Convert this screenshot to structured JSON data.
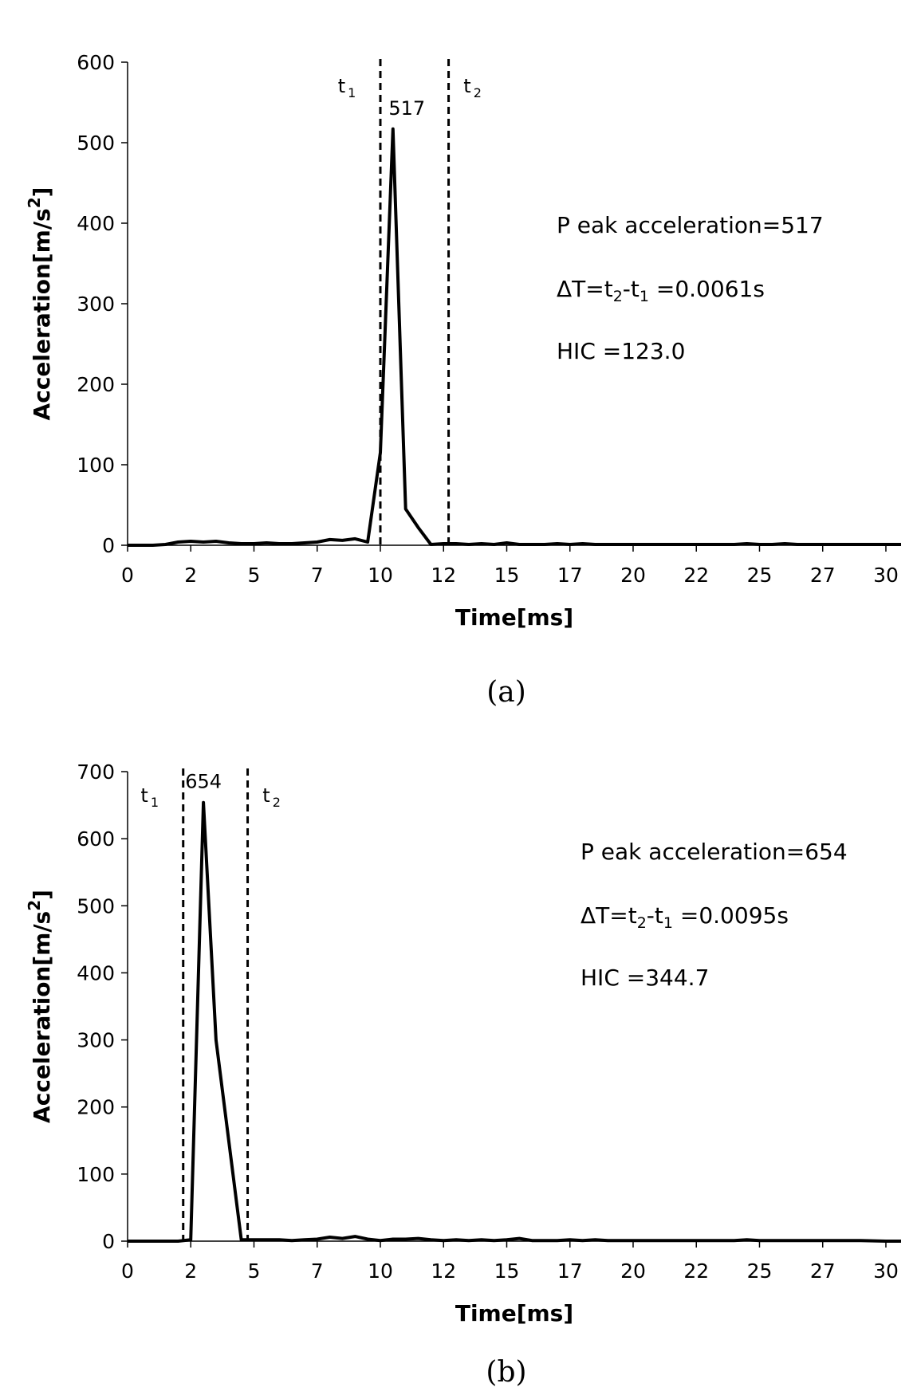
{
  "chart_data": [
    {
      "id": "a",
      "type": "line",
      "caption": "(a)",
      "xlabel": "Time[ms]",
      "ylabel": "Acceleration[m/s",
      "ylabel_sup": "2",
      "ylabel_end": "]",
      "xlim": [
        0,
        30.6
      ],
      "ylim": [
        0,
        600
      ],
      "x_ticks": [
        0,
        2.5,
        5,
        7.5,
        10,
        12.5,
        15,
        17.5,
        20,
        22.5,
        25,
        27.5,
        30
      ],
      "x_tick_labels": [
        "0",
        "2",
        "5",
        "7",
        "10",
        "12",
        "15",
        "17",
        "20",
        "22",
        "25",
        "27",
        "30"
      ],
      "y_ticks": [
        0,
        100,
        200,
        300,
        400,
        500,
        600
      ],
      "y_tick_labels": [
        "0",
        "100",
        "200",
        "300",
        "400",
        "500",
        "600"
      ],
      "grid": false,
      "series": [
        {
          "x": [
            0,
            1,
            1.5,
            2,
            2.5,
            3,
            3.5,
            4,
            4.5,
            5,
            5.5,
            6,
            6.5,
            7,
            7.5,
            8,
            8.5,
            9,
            9.5,
            10,
            10.5,
            11,
            11.5,
            12,
            12.5,
            13,
            13.5,
            14,
            14.5,
            15,
            15.5,
            16,
            16.5,
            17,
            17.5,
            18,
            18.5,
            19,
            19.5,
            20,
            21,
            22,
            23,
            24,
            24.5,
            25,
            25.5,
            26,
            26.5,
            27,
            28,
            29,
            30,
            30.6
          ],
          "y": [
            0,
            0,
            1,
            4,
            5,
            4,
            5,
            3,
            2,
            2,
            3,
            2,
            2,
            3,
            4,
            7,
            6,
            8,
            4,
            115,
            517,
            45,
            22,
            1,
            2,
            2,
            1,
            2,
            1,
            3,
            1,
            1,
            1,
            2,
            1,
            2,
            1,
            1,
            1,
            1,
            1,
            1,
            1,
            1,
            2,
            1,
            1,
            2,
            1,
            1,
            1,
            1,
            1,
            1
          ]
        }
      ],
      "markers": [
        {
          "x": 10.0,
          "label": "t",
          "sub": "1"
        },
        {
          "x": 12.7,
          "label": "t",
          "sub": "2"
        }
      ],
      "peak_label": {
        "x": 11.05,
        "y": 517,
        "text": "517"
      },
      "annotations": [
        {
          "parts": [
            {
              "t": "P eak acceleration=517"
            }
          ]
        },
        {
          "parts": [
            {
              "t": "ΔT=t"
            },
            {
              "t": "2",
              "sub": true
            },
            {
              "t": "-t"
            },
            {
              "t": "1",
              "sub": true
            },
            {
              "t": " =0.0061s"
            }
          ]
        },
        {
          "parts": [
            {
              "t": "HIC =123.0"
            }
          ]
        }
      ]
    },
    {
      "id": "b",
      "type": "line",
      "caption": "(b)",
      "xlabel": "Time[ms]",
      "ylabel": "Acceleration[m/s",
      "ylabel_sup": "2",
      "ylabel_end": "]",
      "xlim": [
        0,
        30.6
      ],
      "ylim": [
        0,
        700
      ],
      "x_ticks": [
        0,
        2.5,
        5,
        7.5,
        10,
        12.5,
        15,
        17.5,
        20,
        22.5,
        25,
        27.5,
        30
      ],
      "x_tick_labels": [
        "0",
        "2",
        "5",
        "7",
        "10",
        "12",
        "15",
        "17",
        "20",
        "22",
        "25",
        "27",
        "30"
      ],
      "y_ticks": [
        0,
        100,
        200,
        300,
        400,
        500,
        600,
        700
      ],
      "y_tick_labels": [
        "0",
        "100",
        "200",
        "300",
        "400",
        "500",
        "600",
        "700"
      ],
      "grid": false,
      "series": [
        {
          "x": [
            0,
            1,
            2,
            2.5,
            3,
            3.5,
            4.5,
            5,
            5.5,
            6,
            6.5,
            7,
            7.5,
            8,
            8.5,
            9,
            9.5,
            10,
            10.5,
            11,
            11.5,
            12,
            12.5,
            13,
            13.5,
            14,
            14.5,
            15,
            15.5,
            16,
            16.5,
            17,
            17.5,
            18,
            18.5,
            19,
            20,
            21,
            22,
            23,
            24,
            24.5,
            25,
            26,
            27,
            28,
            29,
            30,
            30.6
          ],
          "y": [
            0,
            0,
            0,
            2,
            654,
            300,
            2,
            2,
            2,
            2,
            1,
            2,
            3,
            6,
            4,
            7,
            3,
            1,
            3,
            3,
            4,
            2,
            1,
            2,
            1,
            2,
            1,
            2,
            4,
            1,
            1,
            1,
            2,
            1,
            2,
            1,
            1,
            1,
            1,
            1,
            1,
            2,
            1,
            1,
            1,
            1,
            1,
            0,
            0
          ]
        }
      ],
      "markers": [
        {
          "x": 2.2,
          "label": "t",
          "sub": "1"
        },
        {
          "x": 4.75,
          "label": "t",
          "sub": "2"
        }
      ],
      "peak_label": {
        "x": 3.0,
        "y": 654,
        "text": "654"
      },
      "annotations": [
        {
          "parts": [
            {
              "t": "P eak acceleration=654"
            }
          ]
        },
        {
          "parts": [
            {
              "t": "ΔT=t"
            },
            {
              "t": "2",
              "sub": true
            },
            {
              "t": "-t"
            },
            {
              "t": "1",
              "sub": true
            },
            {
              "t": " =0.0095s"
            }
          ]
        },
        {
          "parts": [
            {
              "t": "HIC =344.7"
            }
          ]
        }
      ]
    }
  ]
}
